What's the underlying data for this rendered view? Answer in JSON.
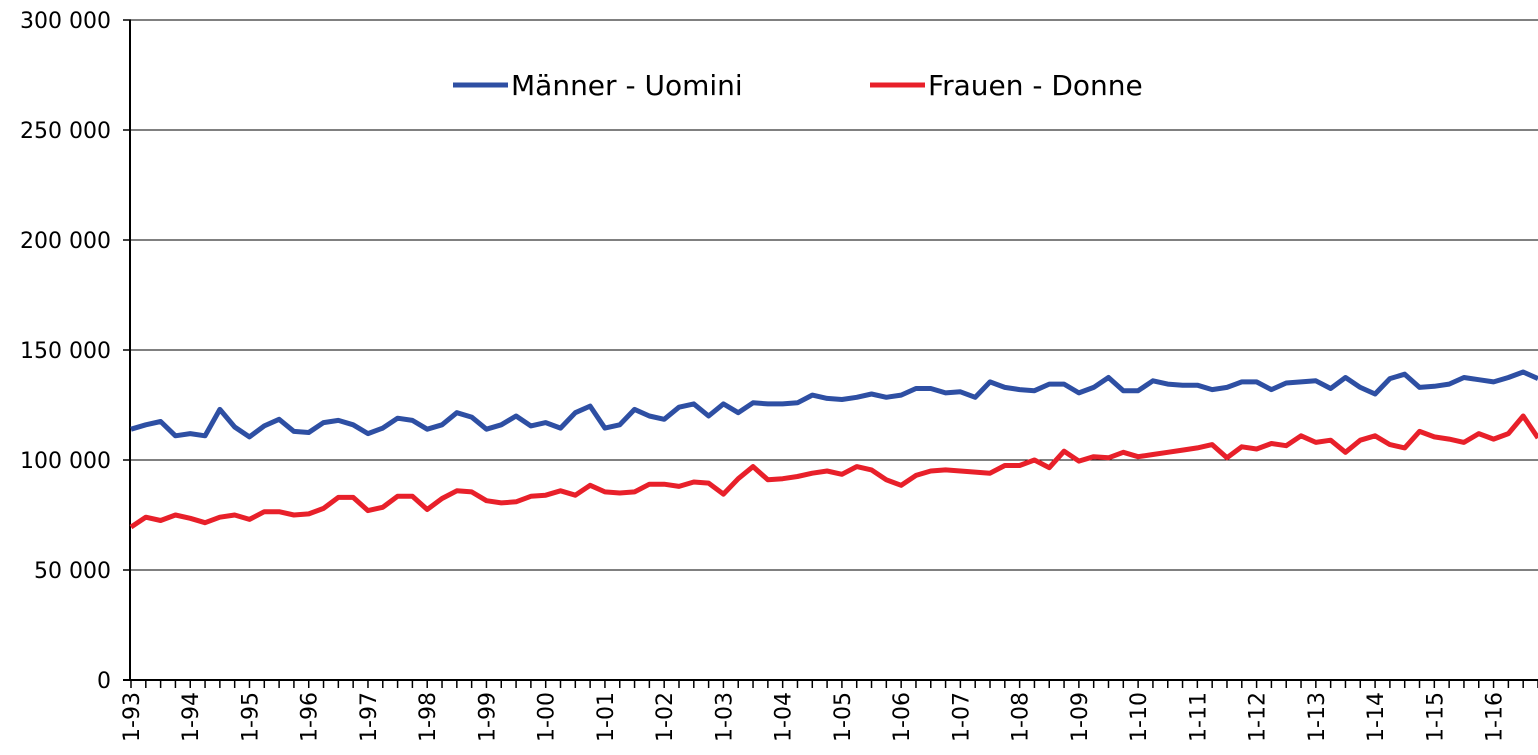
{
  "chart_data": {
    "type": "line",
    "categories": [
      "1-93",
      null,
      null,
      null,
      "1-94",
      null,
      null,
      null,
      "1-95",
      null,
      null,
      null,
      "1-96",
      null,
      null,
      null,
      "1-97",
      null,
      null,
      null,
      "1-98",
      null,
      null,
      null,
      "1-99",
      null,
      null,
      null,
      "1-00",
      null,
      null,
      null,
      "1-01",
      null,
      null,
      null,
      "1-02",
      null,
      null,
      null,
      "1-03",
      null,
      null,
      null,
      "1-04",
      null,
      null,
      null,
      "1-05",
      null,
      null,
      null,
      "1-06",
      null,
      null,
      null,
      "1-07",
      null,
      null,
      null,
      "1-08",
      null,
      null,
      null,
      "1-09",
      null,
      null,
      null,
      "1-10",
      null,
      null,
      null,
      "1-11",
      null,
      null,
      null,
      "1-12",
      null,
      null,
      null,
      "1-13",
      null,
      null,
      null,
      "1-14",
      null,
      null,
      null,
      "1-15",
      null,
      null,
      null,
      "1-16",
      null,
      null,
      null
    ],
    "series": [
      {
        "name": "Männer - Uomini",
        "color": "#2e4fa3",
        "values": [
          114000,
          116000,
          117500,
          111000,
          112000,
          111000,
          123000,
          115000,
          110500,
          115500,
          118500,
          113000,
          112500,
          117000,
          118000,
          116000,
          112000,
          114500,
          119000,
          118000,
          114000,
          116000,
          121500,
          119500,
          114000,
          116000,
          120000,
          115500,
          117000,
          114500,
          121500,
          124500,
          114500,
          116000,
          123000,
          120000,
          118500,
          124000,
          125500,
          120000,
          125500,
          121500,
          126000,
          125500,
          125500,
          126000,
          129500,
          128000,
          127500,
          128500,
          130000,
          128500,
          129500,
          132500,
          132500,
          130500,
          131000,
          128500,
          135500,
          133000,
          132000,
          131500,
          134500,
          134500,
          130500,
          133000,
          137500,
          131500,
          131500,
          136000,
          134500,
          134000,
          134000,
          132000,
          133000,
          135500,
          135500,
          132000,
          135000,
          135500,
          136000,
          132500,
          137500,
          133000,
          130000,
          137000,
          139000,
          133000,
          133500,
          134500,
          137500,
          136500,
          135500,
          137500,
          140000,
          137000
        ]
      },
      {
        "name": "Frauen - Donne",
        "color": "#e8202a",
        "values": [
          69500,
          74000,
          72500,
          75000,
          73500,
          71500,
          74000,
          75000,
          73000,
          76500,
          76500,
          75000,
          75500,
          78000,
          83000,
          83000,
          77000,
          78500,
          83500,
          83500,
          77500,
          82500,
          86000,
          85500,
          81500,
          80500,
          81000,
          83500,
          84000,
          86000,
          84000,
          88500,
          85500,
          85000,
          85500,
          89000,
          89000,
          88000,
          90000,
          89500,
          84500,
          91500,
          97000,
          91000,
          91500,
          92500,
          94000,
          95000,
          93500,
          97000,
          95500,
          91000,
          88500,
          93000,
          95000,
          95500,
          95000,
          94500,
          94000,
          97500,
          97500,
          100000,
          96500,
          104000,
          99500,
          101500,
          101000,
          103500,
          101500,
          102500,
          103500,
          104500,
          105500,
          107000,
          101000,
          106000,
          105000,
          107500,
          106500,
          111000,
          108000,
          109000,
          103500,
          109000,
          111000,
          107000,
          105500,
          113000,
          110500,
          109500,
          108000,
          112000,
          109500,
          112000,
          120000,
          110000
        ]
      }
    ],
    "ylim": [
      0,
      300000
    ],
    "yticks": [
      {
        "value": 0,
        "label": "0"
      },
      {
        "value": 50000,
        "label": "50 000"
      },
      {
        "value": 100000,
        "label": "100 000"
      },
      {
        "value": 150000,
        "label": "150 000"
      },
      {
        "value": 200000,
        "label": "200 000"
      },
      {
        "value": 250000,
        "label": "250 000"
      },
      {
        "value": 300000,
        "label": "300 000"
      }
    ],
    "grid": true,
    "legend": "top"
  }
}
